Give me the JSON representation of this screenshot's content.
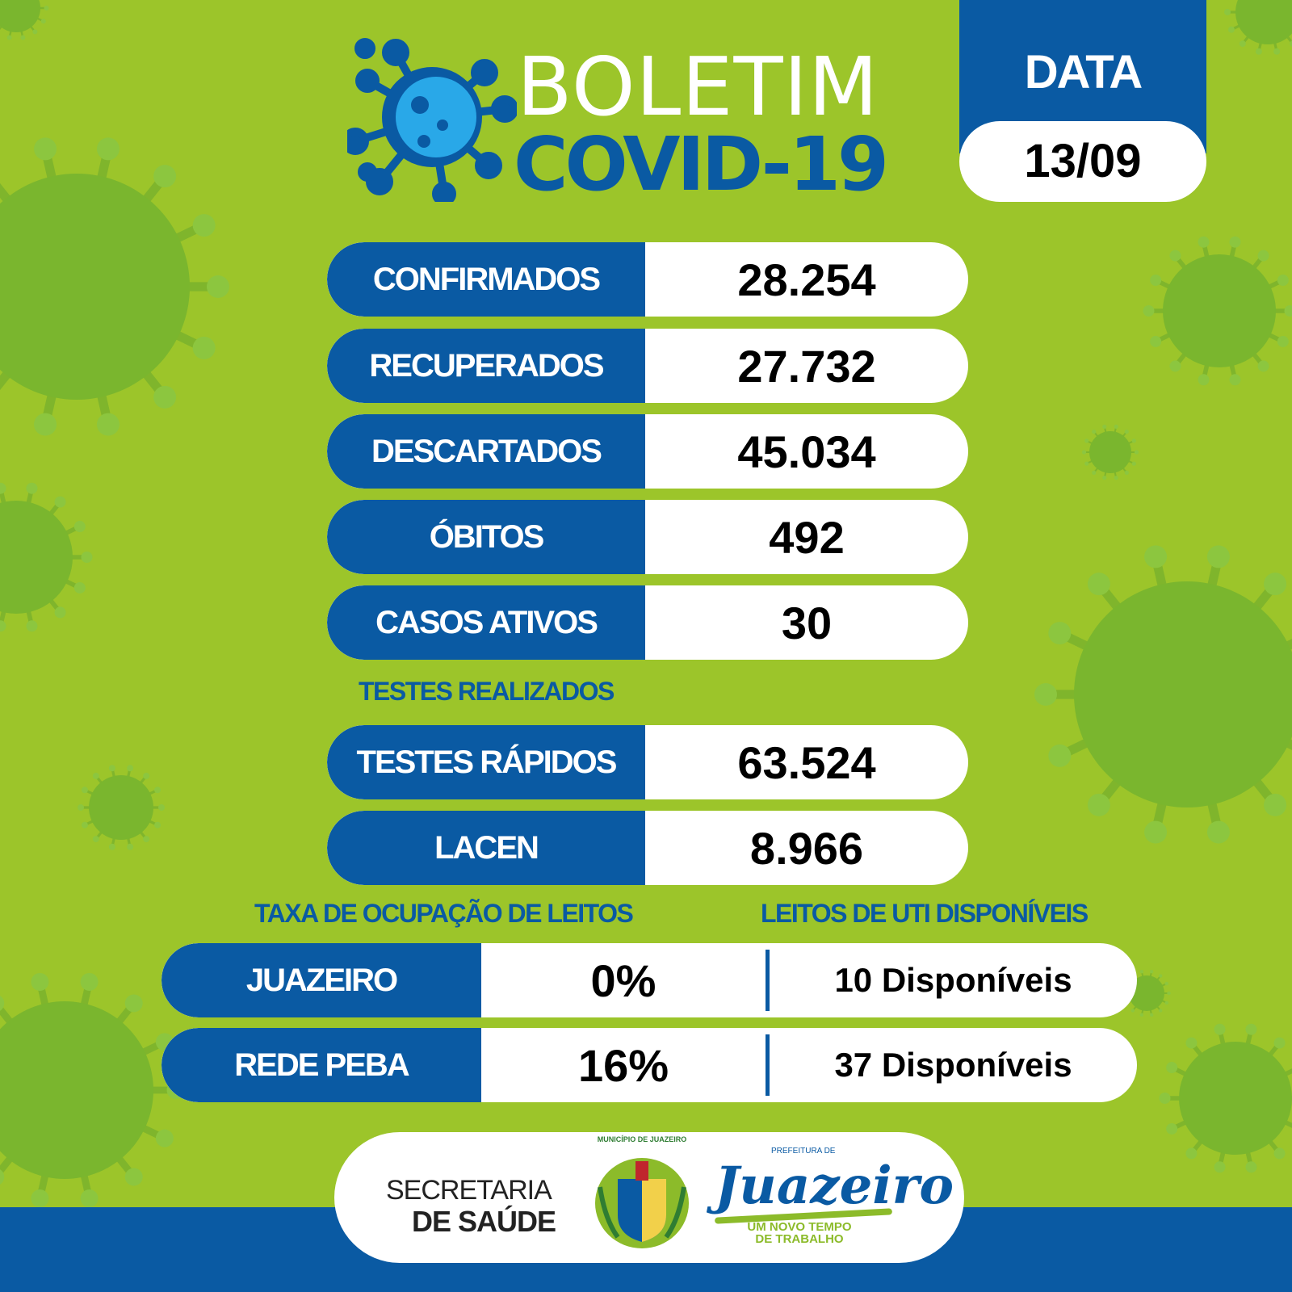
{
  "colors": {
    "background": "#9cc52a",
    "primary": "#0a5aa3",
    "panel": "#ffffff"
  },
  "header": {
    "title_line1": "BOLETIM",
    "title_line2": "COVID-19",
    "icon": "virus-icon",
    "date_label": "DATA",
    "date_value": "13/09"
  },
  "stats": [
    {
      "label": "CONFIRMADOS",
      "value": "28.254"
    },
    {
      "label": "RECUPERADOS",
      "value": "27.732"
    },
    {
      "label": "DESCARTADOS",
      "value": "45.034"
    },
    {
      "label": "ÓBITOS",
      "value": "492"
    },
    {
      "label": "CASOS ATIVOS",
      "value": "30"
    }
  ],
  "tests": {
    "heading": "TESTES REALIZADOS",
    "items": [
      {
        "label": "TESTES RÁPIDOS",
        "value": "63.524"
      },
      {
        "label": "LACEN",
        "value": "8.966"
      }
    ]
  },
  "beds": {
    "occupancy_heading": "TAXA DE OCUPAÇÃO DE LEITOS",
    "icu_heading": "LEITOS DE UTI DISPONÍVEIS",
    "rows": [
      {
        "label": "JUAZEIRO",
        "occupancy": "0%",
        "available": "10 Disponíveis"
      },
      {
        "label": "REDE PEBA",
        "occupancy": "16%",
        "available": "37 Disponíveis"
      }
    ]
  },
  "footer": {
    "secretaria_line1": "SECRETARIA",
    "secretaria_line2": "DE SAÚDE",
    "coat_of_arms": "Município de Juazeiro",
    "prefeitura_small": "PREFEITURA DE",
    "prefeitura_name": "Juazeiro",
    "slogan_line1": "UM NOVO TEMPO",
    "slogan_line2": "DE TRABALHO"
  }
}
